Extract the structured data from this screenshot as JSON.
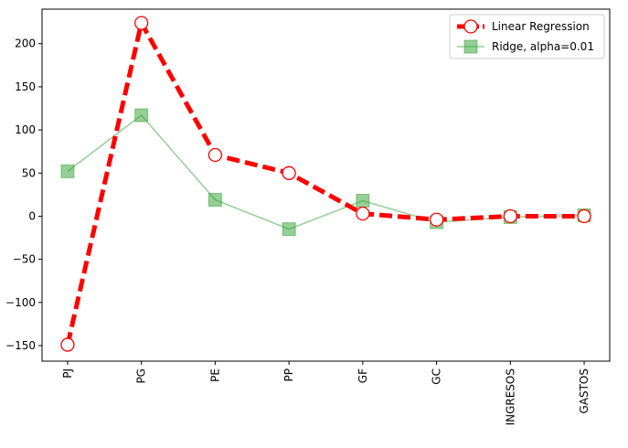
{
  "chart_data": {
    "type": "line",
    "categories": [
      "PJ",
      "PG",
      "PE",
      "PP",
      "GF",
      "GC",
      "INGRESOS",
      "GASTOS"
    ],
    "series": [
      {
        "name": "Linear Regression",
        "values": [
          -149,
          224,
          71,
          50,
          3,
          -4,
          0,
          0
        ],
        "color": "#ff0000",
        "line_style": "dashed",
        "marker": "open-circle"
      },
      {
        "name": "Ridge, alpha=0.01",
        "values": [
          52,
          117,
          19,
          -15,
          18,
          -7,
          -1,
          1
        ],
        "color": "#2ca02c",
        "line_style": "solid",
        "marker": "filled-square"
      }
    ],
    "title": "",
    "xlabel": "",
    "ylabel": "",
    "ylim": [
      -168,
      240
    ],
    "yticks": [
      -150,
      -100,
      -50,
      0,
      50,
      100,
      150,
      200
    ],
    "ytick_labels": [
      "−150",
      "−100",
      "−50",
      "0",
      "50",
      "100",
      "150",
      "200"
    ],
    "xtick_rotation": "vertical",
    "grid": false,
    "legend_position": "top-right"
  }
}
